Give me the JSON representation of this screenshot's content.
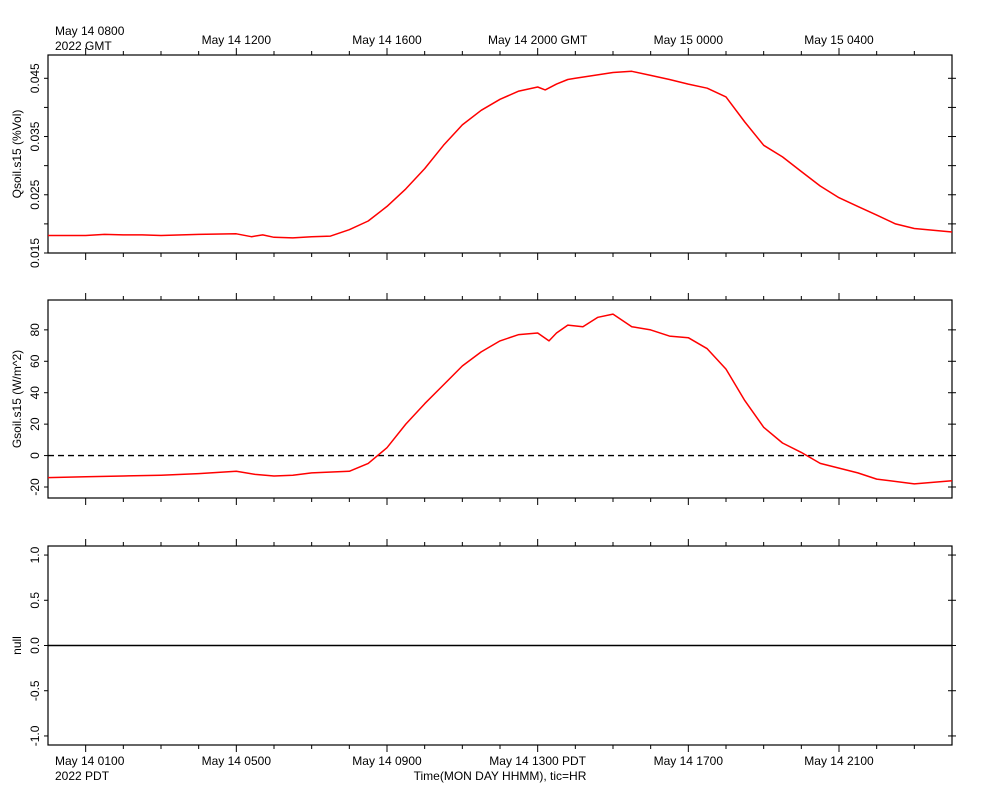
{
  "page": {
    "background": "#ffffff",
    "line_color": "#ff0000",
    "axis_color": "#000000"
  },
  "top_axis": {
    "ticks": [
      {
        "x": 0,
        "label": "May 14 0800"
      },
      {
        "x": 4,
        "label": "May 14 1200"
      },
      {
        "x": 8,
        "label": "May 14 1600"
      },
      {
        "x": 12,
        "label": "May 14 2000 GMT"
      },
      {
        "x": 16,
        "label": "May 15 0000"
      },
      {
        "x": 20,
        "label": "May 15 0400"
      }
    ],
    "sub_label": "2022 GMT"
  },
  "bottom_axis": {
    "ticks": [
      {
        "x": 0,
        "label": "May 14 0100"
      },
      {
        "x": 4,
        "label": "May 14 0500"
      },
      {
        "x": 8,
        "label": "May 14 0900"
      },
      {
        "x": 12,
        "label": "May 14 1300 PDT"
      },
      {
        "x": 16,
        "label": "May 14 1700"
      },
      {
        "x": 20,
        "label": "May 14 2100"
      }
    ],
    "sub_label": "2022 PDT",
    "xlabel": "Time(MON DAY HHMM), tic=HR"
  },
  "chart_data": [
    {
      "type": "line",
      "ylabel": "Qsoil.s15 (%Vol)",
      "xlim": [
        -1,
        23
      ],
      "ylim": [
        0.015,
        0.049
      ],
      "yticks": [
        "0.015",
        "0.025",
        "0.035",
        "0.045"
      ],
      "minor_step": 0.005,
      "zero_line": false,
      "series": [
        {
          "x": [
            -1,
            0,
            0.5,
            1,
            1.5,
            2,
            3,
            4,
            4.4,
            4.7,
            5,
            5.5,
            6,
            6.5,
            7,
            7.5,
            8,
            8.5,
            9,
            9.5,
            10,
            10.5,
            11,
            11.5,
            12,
            12.2,
            12.5,
            12.8,
            13,
            13.5,
            14,
            14.5,
            15,
            15.5,
            16,
            16.5,
            17,
            17.5,
            18,
            18.5,
            19,
            19.5,
            20,
            20.5,
            21,
            21.5,
            22,
            23
          ],
          "y": [
            0.018,
            0.018,
            0.0182,
            0.0181,
            0.0181,
            0.018,
            0.0182,
            0.0183,
            0.0178,
            0.0181,
            0.0177,
            0.0176,
            0.0178,
            0.0179,
            0.019,
            0.0205,
            0.023,
            0.026,
            0.0295,
            0.0335,
            0.037,
            0.0395,
            0.0414,
            0.0428,
            0.0435,
            0.043,
            0.044,
            0.0448,
            0.045,
            0.0455,
            0.046,
            0.0462,
            0.0455,
            0.0448,
            0.044,
            0.0433,
            0.0418,
            0.0375,
            0.0335,
            0.0315,
            0.029,
            0.0265,
            0.0245,
            0.023,
            0.0215,
            0.02,
            0.0192,
            0.0186
          ]
        }
      ]
    },
    {
      "type": "line",
      "ylabel": "Gsoil.s15 (W/m^2)",
      "xlim": [
        -1,
        23
      ],
      "ylim": [
        -27,
        99
      ],
      "yticks": [
        "-20",
        "0",
        "20",
        "40",
        "60",
        "80"
      ],
      "minor_step": 20,
      "zero_line": true,
      "series": [
        {
          "x": [
            -1,
            0,
            1,
            2,
            3,
            4,
            4.5,
            5,
            5.5,
            6,
            7,
            7.5,
            8,
            8.5,
            9,
            9.5,
            10,
            10.5,
            11,
            11.5,
            12,
            12.3,
            12.5,
            12.8,
            13.2,
            13.6,
            14,
            14.5,
            15,
            15.5,
            16,
            16.5,
            17,
            17.5,
            18,
            18.5,
            19,
            19.5,
            20,
            20.5,
            21,
            22,
            23
          ],
          "y": [
            -14,
            -13.5,
            -13,
            -12.5,
            -11.5,
            -10,
            -12,
            -13,
            -12.5,
            -11,
            -10,
            -5,
            5,
            20,
            33,
            45,
            57,
            66,
            73,
            77,
            78,
            73,
            78,
            83,
            82,
            88,
            90,
            82,
            80,
            76,
            75,
            68,
            55,
            35,
            18,
            8,
            2,
            -5,
            -8,
            -11,
            -15,
            -18,
            -16
          ]
        }
      ]
    },
    {
      "type": "line",
      "ylabel": "null",
      "xlim": [
        -1,
        23
      ],
      "ylim": [
        -1.1,
        1.1
      ],
      "yticks": [
        "-1.0",
        "-0.5",
        "0.0",
        "0.5",
        "1.0"
      ],
      "minor_step": 0.5,
      "zero_line": false,
      "series": [
        {
          "x": [
            -1,
            23
          ],
          "y": [
            0,
            0
          ],
          "color": "#000000"
        }
      ]
    }
  ]
}
